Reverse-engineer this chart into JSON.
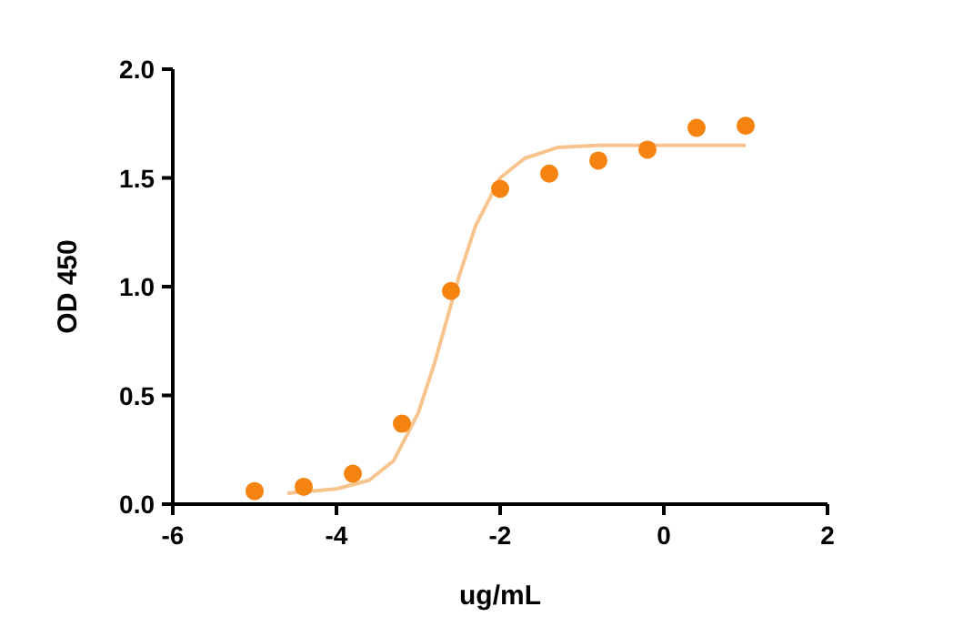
{
  "chart_data": {
    "type": "scatter",
    "xlabel": "ug/mL",
    "ylabel": "OD 450",
    "xlim": [
      -6,
      2
    ],
    "xticks": [
      -6,
      -4,
      -2,
      0,
      2
    ],
    "ylim": [
      0,
      2
    ],
    "yticks": [
      {
        "value": 0,
        "label": "0.0"
      },
      {
        "value": 0.5,
        "label": "0.5"
      },
      {
        "value": 1,
        "label": "1.0"
      },
      {
        "value": 1.5,
        "label": "1.5"
      },
      {
        "value": 2,
        "label": "2.0"
      }
    ],
    "grid": false,
    "series": [
      {
        "type": "line",
        "color": "#f8c48e",
        "marker": "none",
        "x": [
          -4.6,
          -4.0,
          -3.6,
          -3.3,
          -3.0,
          -2.8,
          -2.65,
          -2.5,
          -2.3,
          -2.0,
          -1.7,
          -1.3,
          -0.8,
          0,
          1
        ],
        "values": [
          0.05,
          0.07,
          0.11,
          0.2,
          0.42,
          0.65,
          0.85,
          1.05,
          1.28,
          1.5,
          1.59,
          1.64,
          1.65,
          1.65,
          1.65
        ]
      },
      {
        "color": "#f5830f",
        "marker": "circle",
        "x": [
          -5,
          -4.4,
          -3.8,
          -3.2,
          -2.6,
          -2,
          -1.4,
          -0.8,
          -0.2,
          0.4,
          1
        ],
        "values": [
          0.06,
          0.08,
          0.14,
          0.37,
          0.98,
          1.45,
          1.52,
          1.58,
          1.63,
          1.73,
          1.74
        ]
      }
    ]
  }
}
